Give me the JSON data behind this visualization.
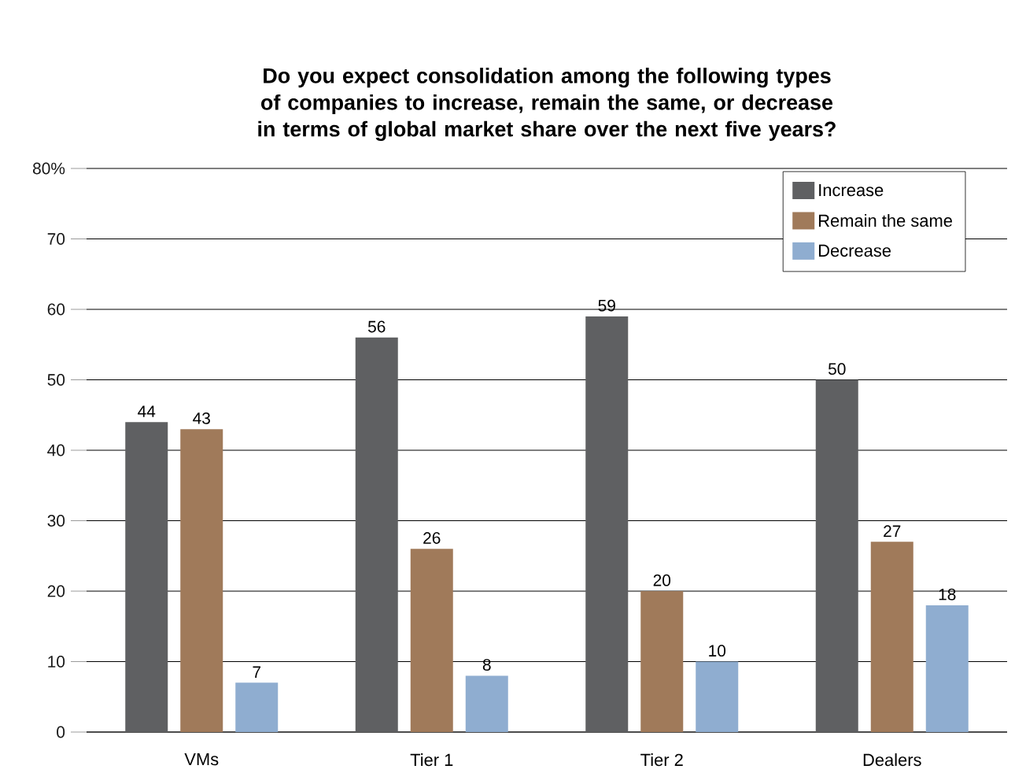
{
  "chart_data": {
    "type": "bar",
    "title": "Do you expect consolidation among the following types of companies to increase, remain the same, or decrease in terms of global market share over the next five years?",
    "categories": [
      "VMs",
      "Tier 1",
      "Tier 2",
      "Dealers"
    ],
    "series": [
      {
        "name": "Increase",
        "color": "#5f6062",
        "values": [
          44,
          56,
          59,
          50
        ]
      },
      {
        "name": "Remain the same",
        "color": "#a07a5a",
        "values": [
          43,
          26,
          20,
          27
        ]
      },
      {
        "name": "Decrease",
        "color": "#8fadd0",
        "values": [
          7,
          8,
          10,
          18
        ]
      }
    ],
    "ylim": [
      0,
      80
    ],
    "yticks": [
      0,
      10,
      20,
      30,
      40,
      50,
      60,
      70,
      {
        "value": 80,
        "label": "80%"
      }
    ],
    "grid": "y",
    "legend": "top right",
    "data_labels": true
  }
}
